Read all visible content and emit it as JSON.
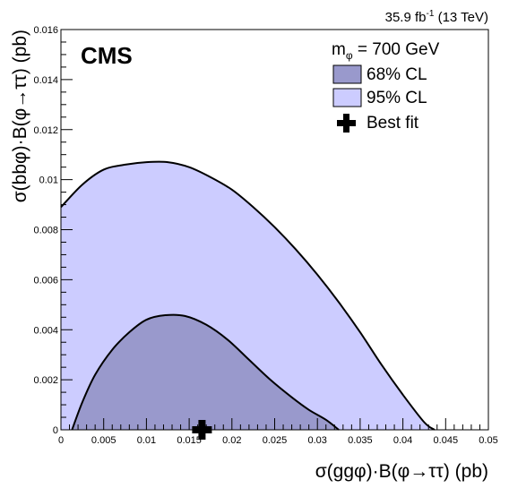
{
  "header": {
    "lumi": "35.9 fb",
    "lumi_exp": "-1",
    "energy": " (13 TeV)",
    "experiment": "CMS"
  },
  "legend": {
    "mass_label": "m",
    "mass_sub": "φ",
    "mass_value": " = 700 GeV",
    "cl68": "68% CL",
    "cl95": "95% CL",
    "bestfit": "Best fit"
  },
  "colors": {
    "cl68": "#9999cc",
    "cl95": "#ccccff",
    "contour": "#000000",
    "marker": "#000000"
  },
  "chart_data": {
    "type": "scatter",
    "xlabel": "σ(ggφ)·B(φ→ττ) (pb)",
    "ylabel": "σ(bbφ)·B(φ→ττ) (pb)",
    "xlim": [
      0,
      0.05
    ],
    "ylim": [
      0,
      0.016
    ],
    "x_ticks": [
      0,
      0.005,
      0.01,
      0.015,
      0.02,
      0.025,
      0.03,
      0.035,
      0.04,
      0.045,
      0.05
    ],
    "x_tick_labels": [
      "0",
      "0.005",
      "0.01",
      "0.015",
      "0.02",
      "0.025",
      "0.03",
      "0.035",
      "0.04",
      "0.045",
      "0.05"
    ],
    "y_ticks": [
      0,
      0.002,
      0.004,
      0.006,
      0.008,
      0.01,
      0.012,
      0.014,
      0.016
    ],
    "y_tick_labels": [
      "0",
      "0.002",
      "0.004",
      "0.006",
      "0.008",
      "0.01",
      "0.012",
      "0.014",
      "0.016"
    ],
    "series": [
      {
        "name": "95% CL",
        "x": [
          0,
          0.0025,
          0.005,
          0.0075,
          0.01,
          0.0125,
          0.015,
          0.0175,
          0.02,
          0.0225,
          0.025,
          0.0275,
          0.03,
          0.0325,
          0.035,
          0.0375,
          0.04,
          0.0425,
          0.0437
        ],
        "y": [
          0.0089,
          0.0098,
          0.0104,
          0.0106,
          0.0107,
          0.0107,
          0.0105,
          0.0101,
          0.0096,
          0.0089,
          0.0081,
          0.0072,
          0.0062,
          0.0051,
          0.0039,
          0.0026,
          0.0014,
          0.0003,
          0
        ]
      },
      {
        "name": "68% CL",
        "x": [
          0.0013,
          0.0025,
          0.004,
          0.006,
          0.008,
          0.01,
          0.0122,
          0.0145,
          0.017,
          0.0195,
          0.022,
          0.0245,
          0.027,
          0.029,
          0.031,
          0.0325
        ],
        "y": [
          0,
          0.0011,
          0.0022,
          0.0032,
          0.0039,
          0.0044,
          0.00458,
          0.00455,
          0.0042,
          0.0036,
          0.0028,
          0.002,
          0.0013,
          0.0008,
          0.0004,
          0
        ]
      }
    ],
    "best_fit": {
      "x": 0.0165,
      "y": 0
    }
  }
}
